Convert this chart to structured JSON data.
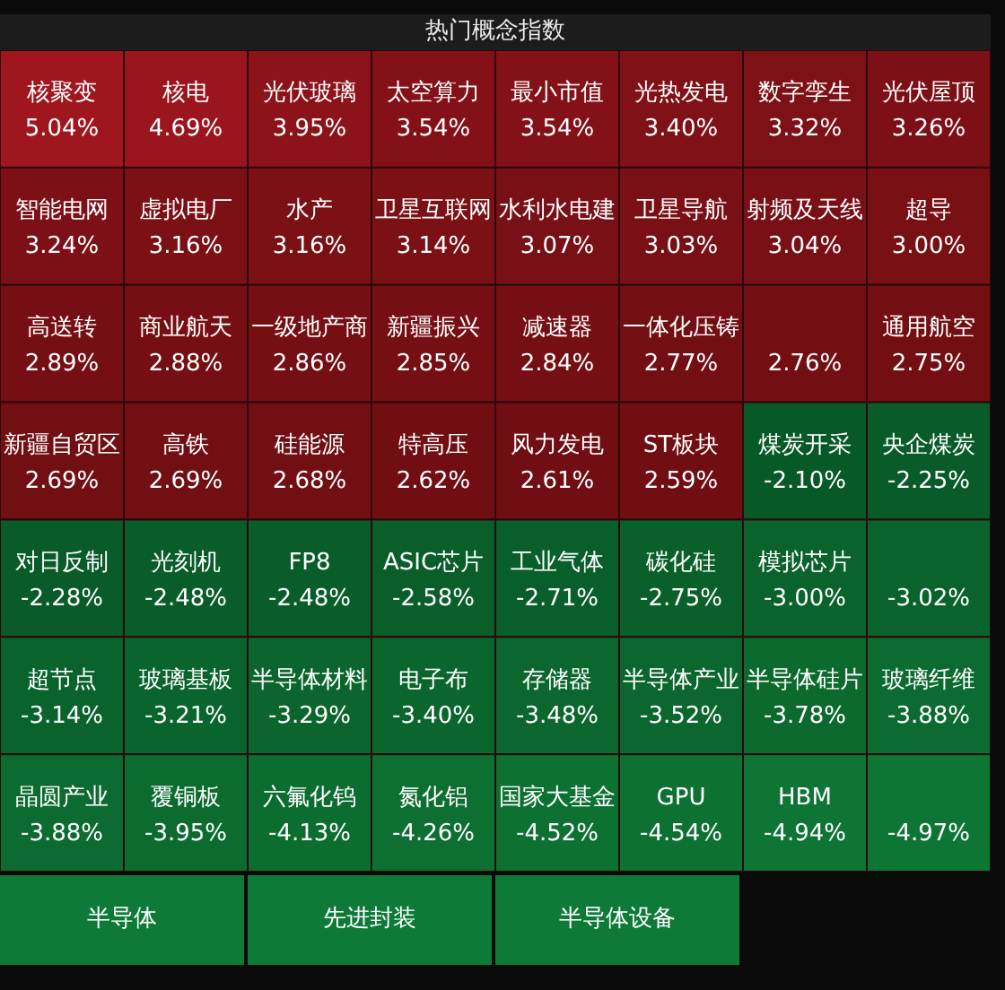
{
  "chart_data": {
    "type": "other",
    "title": "热门概念指数",
    "categories": [
      "核聚变",
      "核电",
      "光伏玻璃",
      "太空算力",
      "最小市值",
      "光热发电",
      "数字孪生",
      "光伏屋顶",
      "智能电网",
      "虚拟电厂",
      "水产",
      "卫星互联网",
      "水利水电建",
      "卫星导航",
      "射频及天线",
      "超导",
      "高送转",
      "商业航天",
      "一级地产商",
      "新疆振兴",
      "减速器",
      "一体化压铸",
      null,
      "通用航空",
      "新疆自贸区",
      "高铁",
      "硅能源",
      "特高压",
      "风力发电",
      "ST板块",
      "煤炭开采",
      "央企煤炭",
      "对日反制",
      "光刻机",
      "FP8",
      "ASIC芯片",
      "工业气体",
      "碳化硅",
      "模拟芯片",
      null,
      "超节点",
      "玻璃基板",
      "半导体材料",
      "电子布",
      "存储器",
      "半导体产业",
      "半导体硅片",
      "玻璃纤维",
      "晶圆产业",
      "覆铜板",
      "六氟化钨",
      "氮化铝",
      "国家大基金",
      "GPU",
      "HBM",
      null
    ],
    "values": [
      5.04,
      4.69,
      3.95,
      3.54,
      3.54,
      3.4,
      3.32,
      3.26,
      3.24,
      3.16,
      3.16,
      3.14,
      3.07,
      3.03,
      3.04,
      3.0,
      2.89,
      2.88,
      2.86,
      2.85,
      2.84,
      2.77,
      2.76,
      2.75,
      2.69,
      2.69,
      2.68,
      2.62,
      2.61,
      2.59,
      -2.1,
      -2.25,
      -2.28,
      -2.48,
      -2.48,
      -2.58,
      -2.71,
      -2.75,
      -3.0,
      -3.02,
      -3.14,
      -3.21,
      -3.29,
      -3.4,
      -3.48,
      -3.52,
      -3.78,
      -3.88,
      -3.88,
      -3.95,
      -4.13,
      -4.26,
      -4.52,
      -4.54,
      -4.94,
      -4.97
    ],
    "value_labels": [
      "5.04%",
      "4.69%",
      "3.95%",
      "3.54%",
      "3.54%",
      "3.40%",
      "3.32%",
      "3.26%",
      "3.24%",
      "3.16%",
      "3.16%",
      "3.14%",
      "3.07%",
      "3.03%",
      "3.04%",
      "3.00%",
      "2.89%",
      "2.88%",
      "2.86%",
      "2.85%",
      "2.84%",
      "2.77%",
      "2.76%",
      "2.75%",
      "2.69%",
      "2.69%",
      "2.68%",
      "2.62%",
      "2.61%",
      "2.59%",
      "-2.10%",
      "-2.25%",
      "-2.28%",
      "-2.48%",
      "-2.48%",
      "-2.58%",
      "-2.71%",
      "-2.75%",
      "-3.00%",
      "-3.02%",
      "-3.14%",
      "-3.21%",
      "-3.29%",
      "-3.40%",
      "-3.48%",
      "-3.52%",
      "-3.78%",
      "-3.88%",
      "-3.88%",
      "-3.95%",
      "-4.13%",
      "-4.26%",
      "-4.52%",
      "-4.54%",
      "-4.94%",
      "-4.97%"
    ],
    "annotations": [
      "半导体",
      "先进封装",
      "半导体设备"
    ]
  }
}
